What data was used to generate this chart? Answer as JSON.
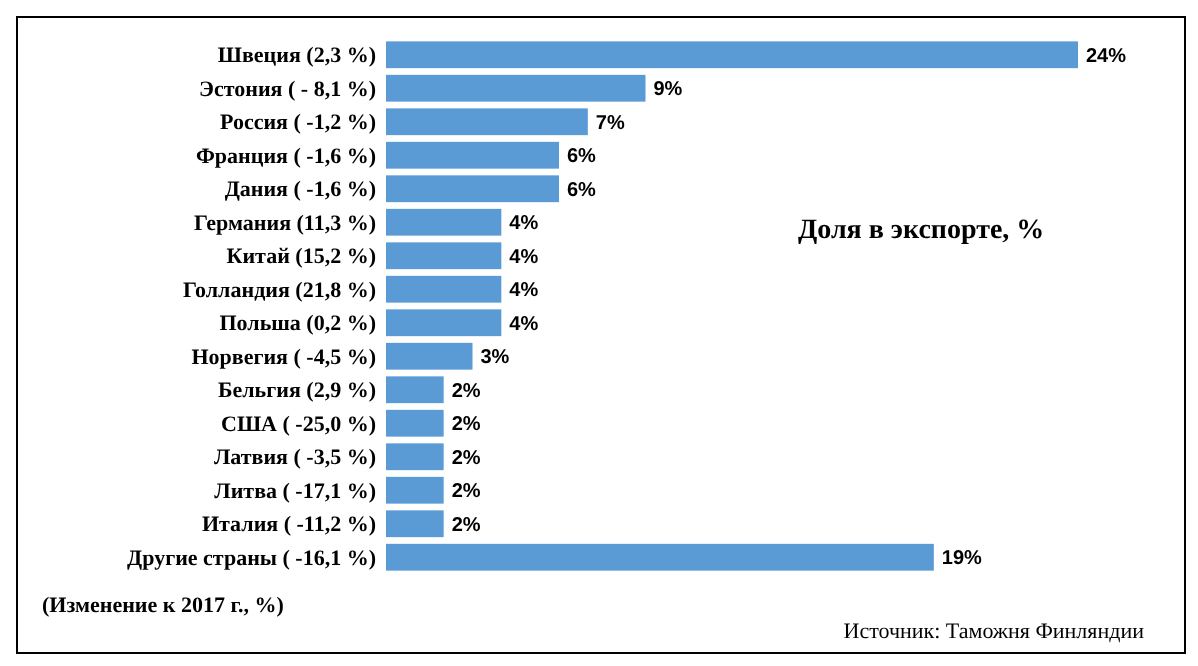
{
  "chart_data": {
    "type": "bar",
    "orientation": "horizontal",
    "title": "Доля в экспорте, %",
    "categories": [
      "Швеция  (2,3 %)",
      "Эстония  ( - 8,1 %)",
      "Россия  ( -1,2 %)",
      "Франция  ( -1,6 %)",
      "Дания  ( -1,6 %)",
      "Германия  (11,3 %)",
      "Китай  (15,2 %)",
      "Голландия  (21,8 %)",
      "Польша  (0,2 %)",
      "Норвегия  ( -4,5 %)",
      "Бельгия  (2,9 %)",
      "США  ( -25,0 %)",
      "Латвия  ( -3,5 %)",
      "Литва  ( -17,1 %)",
      "Италия  ( -11,2 %)",
      "Другие страны  ( -16,1 %)"
    ],
    "values": [
      24,
      9,
      7,
      6,
      6,
      4,
      4,
      4,
      4,
      3,
      2,
      2,
      2,
      2,
      2,
      19
    ],
    "value_labels": [
      "24%",
      "9%",
      "7%",
      "6%",
      "6%",
      "4%",
      "4%",
      "4%",
      "4%",
      "3%",
      "2%",
      "2%",
      "2%",
      "2%",
      "2%",
      "19%"
    ],
    "color": "#5b9bd5",
    "annotations": [
      "(Изменение к 2017 г., %)",
      "Источник: Таможня Финляндии"
    ]
  }
}
